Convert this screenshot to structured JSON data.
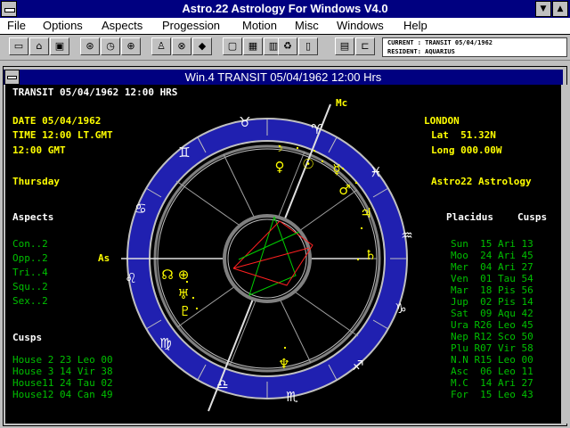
{
  "app": {
    "title": "Astro.22 Astrology For Windows V4.0",
    "menu": [
      "File",
      "Options",
      "Aspects",
      "Progession",
      "Motion",
      "Misc",
      "Windows",
      "Help"
    ]
  },
  "toolbar": {
    "current_line": "CURRENT : TRANSIT 05/04/1962",
    "resident_line": "RESIDENT: AQUARIUS"
  },
  "window": {
    "title": "Win.4  TRANSIT 05/04/1962 12:00 Hrs"
  },
  "chart": {
    "header": "TRANSIT 05/04/1962 12:00 HRS",
    "date": "DATE 05/04/1962",
    "time": "TIME 12:00 LT.GMT",
    "gmt": "12:00 GMT",
    "weekday": "Thursday",
    "place": "LONDON",
    "lat": "Lat  51.32N",
    "long": "Long 000.00W",
    "brand": "Astro22 Astrology",
    "aspects_title": "Aspects",
    "aspects": [
      "Con..2",
      "Opp..2",
      "Tri..4",
      "Squ..2",
      "Sex..2"
    ],
    "cusps_title": "Cusps",
    "cusps": [
      "House 2 23 Leo 00",
      "House 3 14 Vir 38",
      "House11 24 Tau 02",
      "House12 04 Can 49"
    ],
    "system_title": "Placidus",
    "system_cusps_title": "Cusps",
    "positions": [
      "Sun  15 Ari 13",
      "Moo  24 Ari 45",
      "Mer  04 Ari 27",
      "Ven  01 Tau 54",
      "Mar  18 Pis 56",
      "Jup  02 Pis 14",
      "Sat  09 Aqu 42",
      "Ura R26 Leo 45",
      "Nep R12 Sco 50",
      "Plu R07 Vir 58",
      "N.N R15 Leo 00",
      "Asc  06 Leo 11",
      "M.C  14 Ari 27",
      "For  15 Leo 43"
    ],
    "mc_label": "Mc",
    "as_label": "As"
  },
  "colors": {
    "zodiac_ring": "#2020b0",
    "chart_bg": "#000000",
    "text_white": "#ffffff",
    "text_yellow": "#ffff00",
    "text_green": "#00c000",
    "aspect_red": "#ff2020",
    "aspect_green": "#00d000"
  }
}
